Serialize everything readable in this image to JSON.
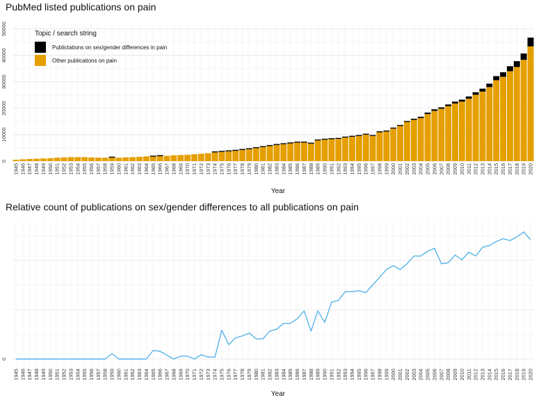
{
  "chart_data": [
    {
      "type": "bar",
      "stacked": true,
      "title": "PubMed listed publications on pain",
      "xlabel": "Year",
      "ylabel": "",
      "x": [
        1945,
        1946,
        1947,
        1948,
        1949,
        1950,
        1951,
        1952,
        1953,
        1954,
        1955,
        1956,
        1957,
        1958,
        1959,
        1960,
        1961,
        1962,
        1963,
        1964,
        1965,
        1966,
        1967,
        1968,
        1969,
        1970,
        1971,
        1972,
        1973,
        1974,
        1975,
        1976,
        1977,
        1978,
        1979,
        1980,
        1981,
        1982,
        1983,
        1984,
        1985,
        1986,
        1987,
        1988,
        1989,
        1990,
        1991,
        1992,
        1993,
        1994,
        1995,
        1996,
        1997,
        1998,
        1999,
        2000,
        2001,
        2002,
        2003,
        2004,
        2005,
        2006,
        2007,
        2008,
        2009,
        2010,
        2011,
        2012,
        2013,
        2014,
        2015,
        2016,
        2017,
        2018,
        2019,
        2020
      ],
      "yticks": [
        "0",
        "10000",
        "20000",
        "30000",
        "40000",
        "50000"
      ],
      "ylim": [
        0,
        52000
      ],
      "legend_title": "Topic / search string",
      "legend_position": "top-left",
      "grid": true,
      "series": [
        {
          "name": "Other publications on pain",
          "color": "#E69F00",
          "values": [
            500,
            700,
            800,
            900,
            1000,
            1100,
            1300,
            1400,
            1500,
            1500,
            1500,
            1400,
            1300,
            1300,
            1300,
            1300,
            1400,
            1500,
            1600,
            1800,
            1700,
            1900,
            2000,
            2200,
            2300,
            2400,
            2600,
            2800,
            3000,
            3300,
            3500,
            3700,
            3900,
            4200,
            4500,
            4900,
            5300,
            5700,
            6100,
            6400,
            6700,
            7000,
            7000,
            6600,
            7800,
            8100,
            8300,
            8400,
            8900,
            9200,
            9500,
            10000,
            9500,
            10900,
            11200,
            12300,
            13300,
            14800,
            15600,
            16300,
            17800,
            19000,
            19800,
            20800,
            21800,
            22500,
            23600,
            25100,
            26300,
            28000,
            30600,
            31900,
            34000,
            35600,
            38300,
            43400
          ]
        },
        {
          "name": "Publictations on sex/gender differences in pain",
          "color": "#000000",
          "values": [
            0,
            0,
            0,
            0,
            0,
            0,
            0,
            0,
            0,
            0,
            0,
            0,
            0,
            0,
            1,
            0,
            0,
            0,
            0,
            0,
            1,
            1,
            0,
            0,
            0,
            0,
            0,
            0,
            0,
            2,
            3,
            2,
            3,
            3,
            3,
            3,
            4,
            5,
            6,
            7,
            8,
            9,
            10,
            8,
            12,
            10,
            16,
            18,
            22,
            24,
            26,
            28,
            30,
            38,
            46,
            54,
            60,
            72,
            86,
            92,
            110,
            120,
            108,
            125,
            140,
            150,
            170,
            190,
            220,
            260,
            310,
            340,
            380,
            440,
            480,
            660
          ]
        }
      ]
    },
    {
      "type": "line",
      "title": "Relative count of publications on sex/gender differences to all publications on pain",
      "xlabel": "Year",
      "ylabel": "",
      "color": "#56B4E9",
      "ylim": [
        0,
        0.0145
      ],
      "yticks": [
        "0",
        "",
        "",
        ""
      ],
      "grid": true,
      "x": [
        1945,
        1946,
        1947,
        1948,
        1949,
        1950,
        1951,
        1952,
        1953,
        1954,
        1955,
        1956,
        1957,
        1958,
        1959,
        1960,
        1961,
        1962,
        1963,
        1964,
        1965,
        1966,
        1967,
        1968,
        1969,
        1970,
        1971,
        1972,
        1973,
        1974,
        1975,
        1976,
        1977,
        1978,
        1979,
        1980,
        1981,
        1982,
        1983,
        1984,
        1985,
        1986,
        1987,
        1988,
        1989,
        1990,
        1991,
        1992,
        1993,
        1994,
        1995,
        1996,
        1997,
        1998,
        1999,
        2000,
        2001,
        2002,
        2003,
        2004,
        2005,
        2006,
        2007,
        2008,
        2009,
        2010,
        2011,
        2012,
        2013,
        2014,
        2015,
        2016,
        2017,
        2018,
        2019,
        2020
      ],
      "y": [
        0,
        0,
        0,
        0,
        0,
        0,
        0,
        0,
        0,
        0,
        0,
        0,
        0,
        0,
        0.00055,
        0,
        0,
        0,
        0,
        0,
        0.0009,
        0.0008,
        0.0004,
        0,
        0.0003,
        0.0003,
        0,
        0.00045,
        0.0002,
        0.0002,
        0.003,
        0.0015,
        0.0022,
        0.0024,
        0.0027,
        0.0021,
        0.0021,
        0.0029,
        0.0031,
        0.0037,
        0.0037,
        0.0042,
        0.005,
        0.0029,
        0.005,
        0.0038,
        0.0059,
        0.0061,
        0.007,
        0.007,
        0.0071,
        0.0069,
        0.0077,
        0.0085,
        0.0093,
        0.0097,
        0.0093,
        0.0099,
        0.0107,
        0.0107,
        0.0112,
        0.0115,
        0.0099,
        0.01,
        0.0108,
        0.0103,
        0.0111,
        0.0107,
        0.0116,
        0.0118,
        0.0122,
        0.0125,
        0.0123,
        0.0127,
        0.0132,
        0.0124
      ]
    }
  ]
}
